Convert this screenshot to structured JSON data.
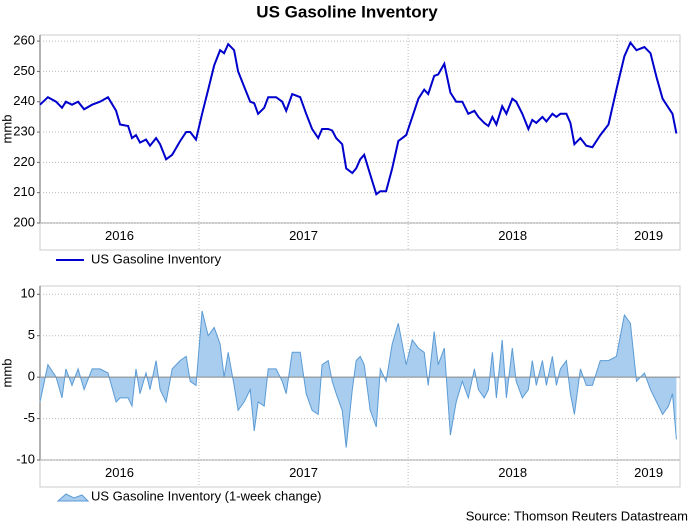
{
  "title": "US Gasoline Inventory",
  "source": "Source: Thomson Reuters Datastream",
  "chart_data": [
    {
      "type": "line",
      "ylabel": "mmb",
      "xlim": [
        2016.24,
        2019.3
      ],
      "ylim": [
        200,
        262
      ],
      "yticks": [
        200,
        210,
        220,
        230,
        240,
        250,
        260
      ],
      "grid": true,
      "xticks": [
        {
          "value": 2016.62,
          "label": "2016"
        },
        {
          "value": 2017.5,
          "label": "2017"
        },
        {
          "value": 2018.5,
          "label": "2018"
        },
        {
          "value": 2019.15,
          "label": "2019"
        }
      ],
      "year_lines": [
        2017,
        2018,
        2019
      ],
      "x": [
        2016.24,
        2016.278,
        2016.317,
        2016.345,
        2016.364,
        2016.393,
        2016.422,
        2016.451,
        2016.489,
        2016.527,
        2016.565,
        2016.604,
        2016.623,
        2016.661,
        2016.68,
        2016.699,
        2016.718,
        2016.747,
        2016.766,
        2016.795,
        2016.814,
        2016.843,
        2016.872,
        2016.91,
        2016.939,
        2016.958,
        2016.986,
        2017.015,
        2017.044,
        2017.073,
        2017.101,
        2017.12,
        2017.14,
        2017.168,
        2017.187,
        2017.216,
        2017.245,
        2017.264,
        2017.283,
        2017.312,
        2017.331,
        2017.369,
        2017.398,
        2017.417,
        2017.446,
        2017.484,
        2017.513,
        2017.541,
        2017.57,
        2017.589,
        2017.618,
        2017.637,
        2017.656,
        2017.685,
        2017.704,
        2017.733,
        2017.752,
        2017.771,
        2017.79,
        2017.819,
        2017.848,
        2017.867,
        2017.895,
        2017.924,
        2017.953,
        2017.991,
        2018.02,
        2018.049,
        2018.077,
        2018.096,
        2018.125,
        2018.144,
        2018.173,
        2018.202,
        2018.23,
        2018.259,
        2018.288,
        2018.317,
        2018.336,
        2018.364,
        2018.384,
        2018.403,
        2018.422,
        2018.45,
        2018.47,
        2018.498,
        2018.517,
        2018.546,
        2018.575,
        2018.594,
        2018.613,
        2018.642,
        2018.661,
        2018.69,
        2018.709,
        2018.728,
        2018.757,
        2018.776,
        2018.795,
        2018.824,
        2018.852,
        2018.881,
        2018.919,
        2018.958,
        2018.996,
        2019.034,
        2019.063,
        2019.092,
        2019.13,
        2019.159,
        2019.188,
        2019.217,
        2019.245,
        2019.264,
        2019.283
      ],
      "series": [
        {
          "name": "US Gasoline Inventory",
          "color": "#0000cc",
          "values": [
            239,
            241.5,
            240,
            238,
            240,
            239,
            240,
            237.5,
            239,
            240,
            241.5,
            237,
            232.5,
            232,
            228,
            229,
            226.5,
            227.5,
            225.5,
            228,
            226,
            221,
            222.5,
            227,
            230,
            230,
            227.5,
            236,
            244,
            252,
            257,
            256,
            259,
            257,
            250,
            245,
            240,
            239.5,
            236,
            238,
            241.5,
            241.5,
            240,
            237,
            242.5,
            241.5,
            236,
            231,
            228,
            231,
            231,
            230.5,
            228,
            226,
            218,
            216.5,
            218,
            221,
            222.5,
            216,
            209.5,
            210.5,
            210.5,
            218,
            227,
            229,
            235,
            241,
            244,
            242.5,
            248.5,
            249,
            252.5,
            243,
            240,
            240,
            236,
            237,
            235,
            233,
            232,
            235,
            232.5,
            238.5,
            236,
            241,
            240,
            236,
            231,
            234,
            233,
            235,
            233.5,
            236,
            235,
            236,
            236,
            233,
            226,
            228,
            225.5,
            225,
            229,
            232.5,
            244,
            255,
            259.5,
            257,
            258,
            256,
            248,
            241,
            238,
            236,
            229.5
          ]
        }
      ]
    },
    {
      "type": "area",
      "ylabel": "mmb",
      "xlim": [
        2016.24,
        2019.3
      ],
      "ylim": [
        -10,
        11
      ],
      "yticks": [
        -10,
        -5,
        0,
        5,
        10
      ],
      "grid": true,
      "xticks": [
        {
          "value": 2016.62,
          "label": "2016"
        },
        {
          "value": 2017.5,
          "label": "2017"
        },
        {
          "value": 2018.5,
          "label": "2018"
        },
        {
          "value": 2019.15,
          "label": "2019"
        }
      ],
      "year_lines": [
        2017,
        2018,
        2019
      ],
      "x": [
        2016.24,
        2016.278,
        2016.317,
        2016.345,
        2016.364,
        2016.393,
        2016.422,
        2016.451,
        2016.489,
        2016.527,
        2016.565,
        2016.604,
        2016.623,
        2016.661,
        2016.68,
        2016.699,
        2016.718,
        2016.747,
        2016.766,
        2016.795,
        2016.814,
        2016.843,
        2016.872,
        2016.91,
        2016.939,
        2016.958,
        2016.986,
        2017.015,
        2017.044,
        2017.073,
        2017.101,
        2017.12,
        2017.14,
        2017.168,
        2017.187,
        2017.216,
        2017.245,
        2017.264,
        2017.283,
        2017.312,
        2017.331,
        2017.369,
        2017.398,
        2017.417,
        2017.446,
        2017.484,
        2017.513,
        2017.541,
        2017.57,
        2017.589,
        2017.618,
        2017.637,
        2017.656,
        2017.685,
        2017.704,
        2017.733,
        2017.752,
        2017.771,
        2017.79,
        2017.819,
        2017.848,
        2017.867,
        2017.895,
        2017.924,
        2017.953,
        2017.991,
        2018.02,
        2018.049,
        2018.077,
        2018.096,
        2018.125,
        2018.144,
        2018.173,
        2018.202,
        2018.23,
        2018.259,
        2018.288,
        2018.317,
        2018.336,
        2018.364,
        2018.384,
        2018.403,
        2018.422,
        2018.45,
        2018.47,
        2018.498,
        2018.517,
        2018.546,
        2018.575,
        2018.594,
        2018.613,
        2018.642,
        2018.661,
        2018.69,
        2018.709,
        2018.728,
        2018.757,
        2018.776,
        2018.795,
        2018.824,
        2018.852,
        2018.881,
        2018.919,
        2018.958,
        2018.996,
        2019.034,
        2019.063,
        2019.092,
        2019.13,
        2019.159,
        2019.188,
        2019.217,
        2019.245,
        2019.264,
        2019.283
      ],
      "series": [
        {
          "name": "US Gasoline Inventory (1-week change)",
          "color": "#5b9bd5",
          "fill": "#a9cdee",
          "values": [
            -3,
            1.5,
            0,
            -2.5,
            1,
            -1,
            1,
            -1.5,
            1,
            1,
            0.5,
            -3,
            -2.5,
            -2.5,
            -3.5,
            1,
            -2,
            0.5,
            -1.5,
            2,
            -1.5,
            -3,
            1,
            2,
            2.5,
            -0.5,
            -1,
            8,
            5,
            6,
            4,
            0,
            3,
            -1,
            -4,
            -3,
            -1.5,
            -6.5,
            -3,
            -3.5,
            1,
            1,
            -0.5,
            -2,
            3,
            3,
            -2,
            -4,
            -4.5,
            1.5,
            2,
            -0.5,
            -2,
            -4,
            -8.5,
            -1.5,
            2,
            2.5,
            1.5,
            -4,
            -6,
            1,
            -0.5,
            4,
            6.5,
            1.5,
            4.5,
            3.5,
            3,
            -1,
            5.5,
            1.5,
            3.5,
            -7,
            -3,
            -0.5,
            -2.5,
            1,
            -1.5,
            -2.5,
            -1.5,
            3,
            -2.5,
            4.5,
            -2.5,
            3.5,
            -0.5,
            -2.5,
            -1.5,
            2,
            -1,
            2,
            -1,
            2.5,
            -1,
            1,
            2,
            -2,
            -4.5,
            1,
            -1,
            -1,
            2,
            2,
            2.5,
            7.5,
            6.5,
            -0.5,
            0.5,
            -1.5,
            -3,
            -4.5,
            -3.5,
            -2,
            -7.5
          ]
        }
      ]
    }
  ]
}
